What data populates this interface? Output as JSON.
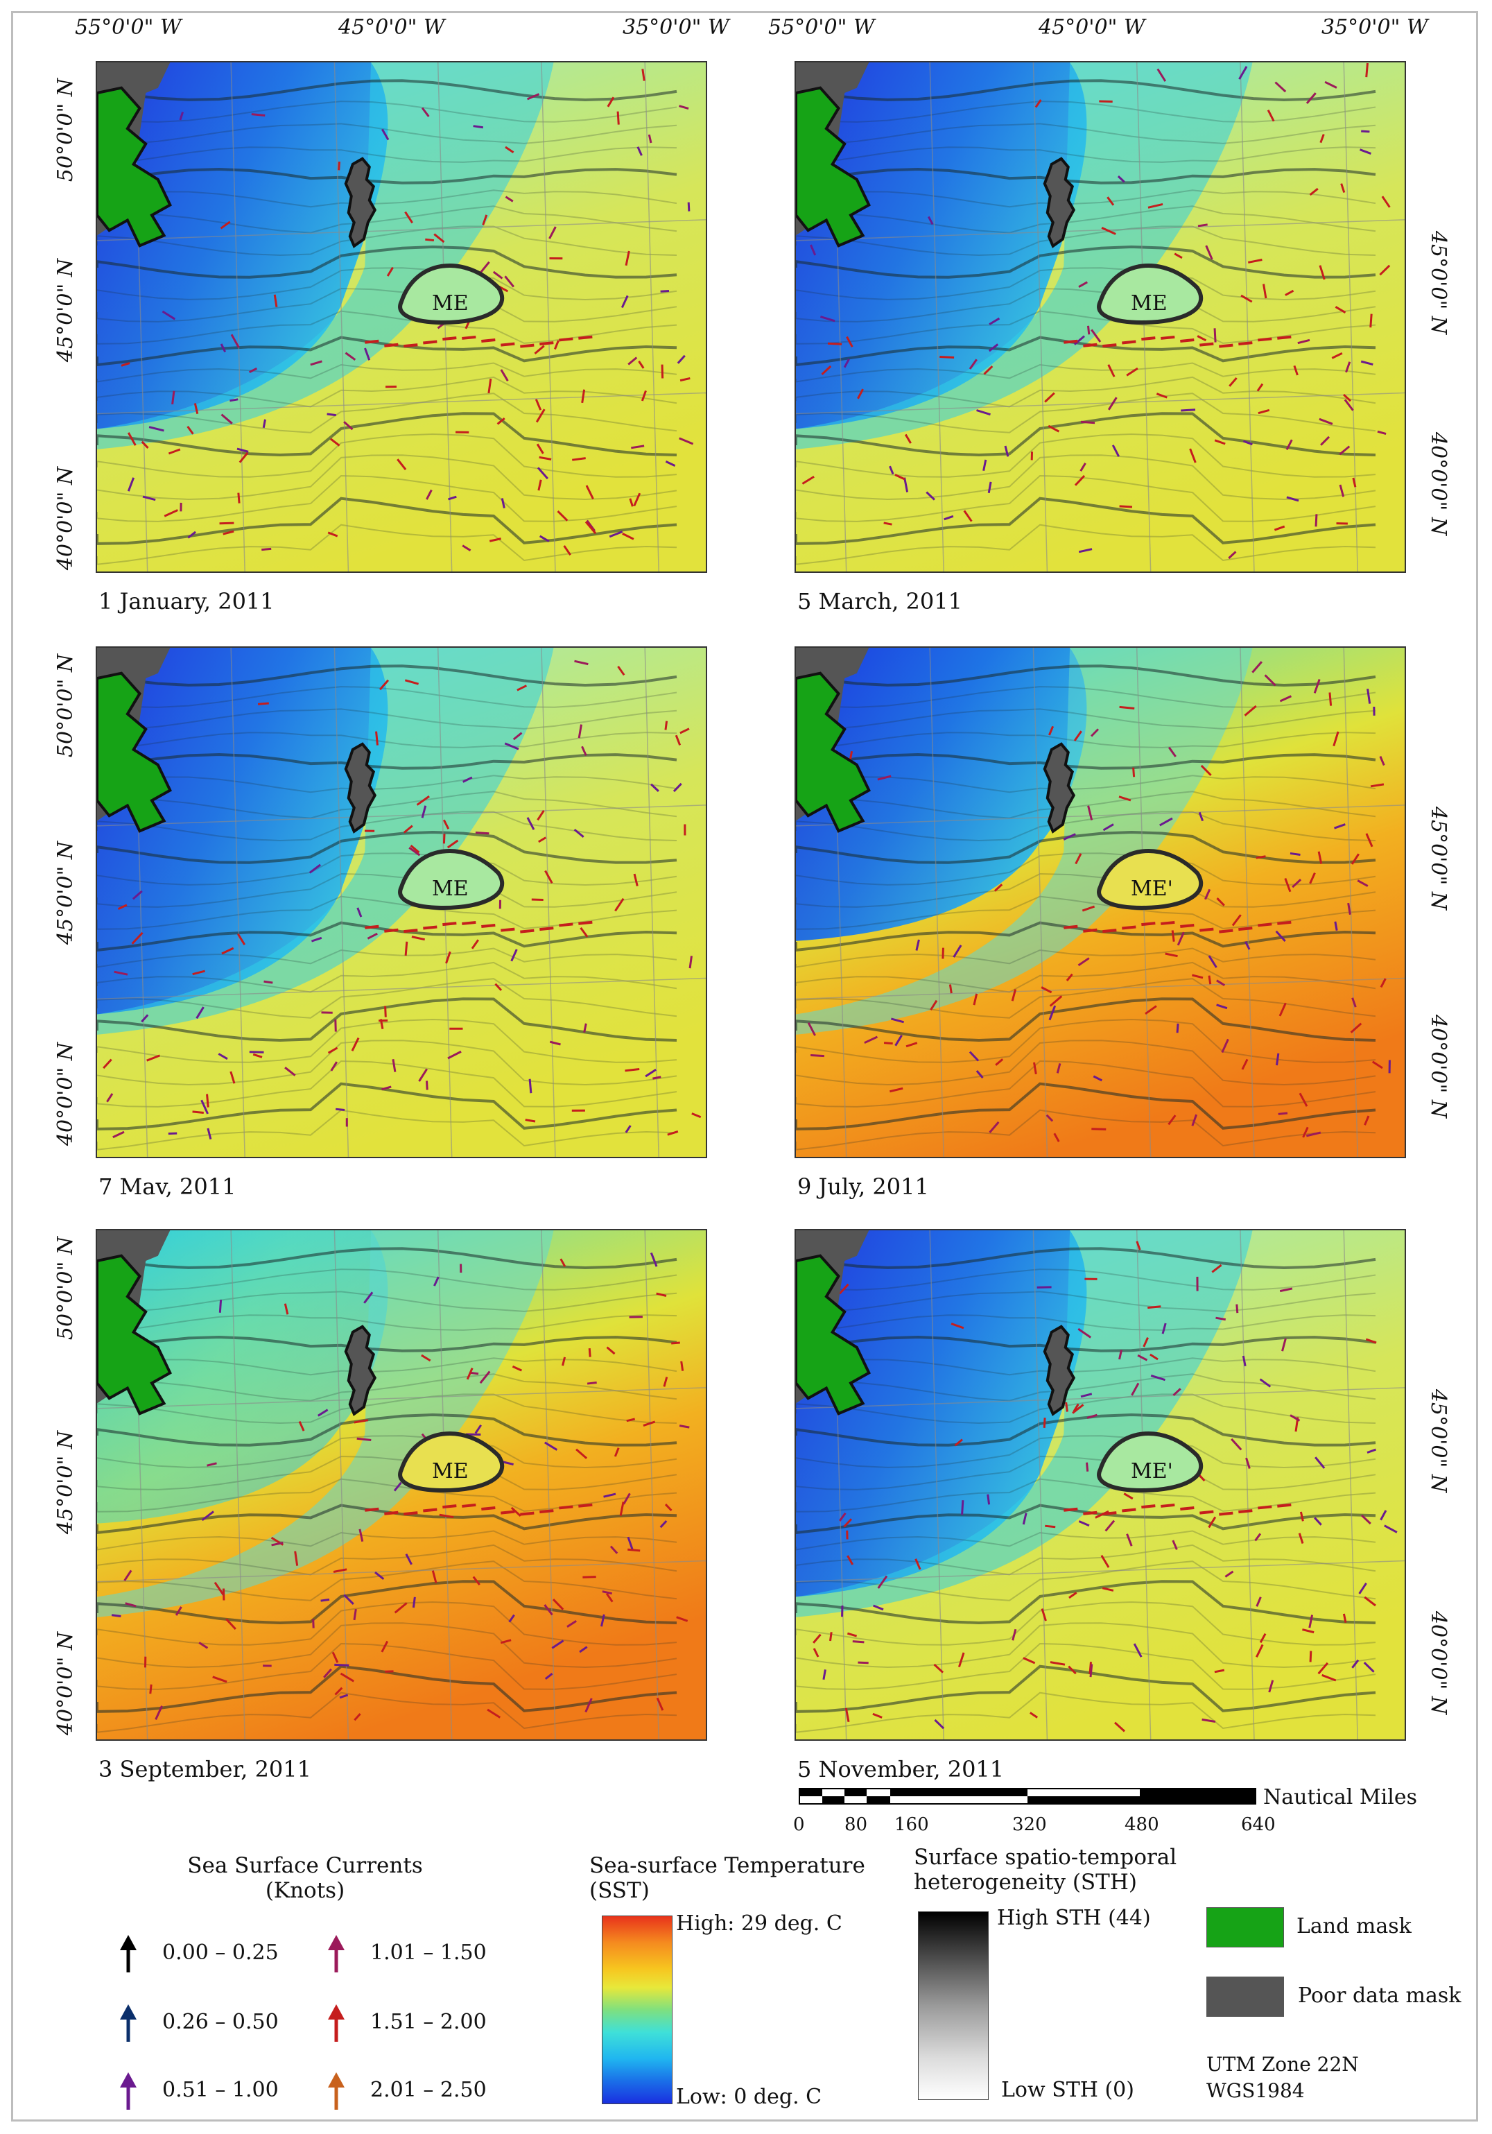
{
  "panels": [
    {
      "date": "1 January, 2011",
      "warm": 0.15,
      "label": "ME"
    },
    {
      "date": "5 March, 2011",
      "warm": 0.18,
      "label": "ME"
    },
    {
      "date": "7 Mav, 2011",
      "warm": 0.22,
      "label": "ME"
    },
    {
      "date": "9 July, 2011",
      "warm": 0.6,
      "label": "ME'"
    },
    {
      "date": "3 September, 2011",
      "warm": 0.8,
      "label": "ME"
    },
    {
      "date": "5 November, 2011",
      "warm": 0.4,
      "label": "ME'"
    }
  ],
  "longitudes": [
    "55°0'0\" W",
    "45°0'0\" W",
    "35°0'0\" W"
  ],
  "latitudes": {
    "n50": "50°0'0\" N",
    "n45": "45°0'0\" N",
    "n40": "40°0'0\" N"
  },
  "scale_bar": {
    "unit": "Nautical Miles",
    "ticks": [
      "0",
      "80",
      "160",
      "320",
      "480",
      "640"
    ]
  },
  "currents_legend": {
    "title_line1": "Sea Surface Currents",
    "title_line2": "(Knots)",
    "classes": [
      {
        "range": "0.00 – 0.25",
        "color": "#000000"
      },
      {
        "range": "0.26 – 0.50",
        "color": "#0b2f6b"
      },
      {
        "range": "0.51 – 1.00",
        "color": "#6a1a8f"
      },
      {
        "range": "1.01 – 1.50",
        "color": "#9b1a5a"
      },
      {
        "range": "1.51 – 2.00",
        "color": "#c51d1d"
      },
      {
        "range": "2.01 – 2.50",
        "color": "#c8611c"
      }
    ]
  },
  "sst_legend": {
    "title_line1": "Sea-surface Temperature",
    "title_line2": "(SST)",
    "high": "High: 29 deg. C",
    "low": "Low: 0 deg. C"
  },
  "sth_legend": {
    "title_line1": "Surface spatio-temporal",
    "title_line2": "heterogeneity (STH)",
    "high": "High STH (44)",
    "low": "Low STH (0)"
  },
  "masks": [
    {
      "label": "Land mask",
      "color": "#16a316"
    },
    {
      "label": "Poor data mask",
      "color": "#555555"
    }
  ],
  "projection": {
    "line1": "UTM Zone 22N",
    "line2": "WGS1984"
  }
}
